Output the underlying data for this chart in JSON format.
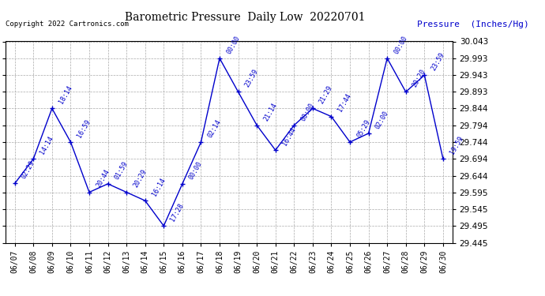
{
  "title": "Barometric Pressure  Daily Low  20220701",
  "ylabel": "Pressure  (Inches/Hg)",
  "copyright": "Copyright 2022 Cartronics.com",
  "line_color": "#0000cc",
  "marker_color": "#0000cc",
  "background_color": "#ffffff",
  "grid_color": "#aaaaaa",
  "dates": [
    "06/07",
    "06/08",
    "06/09",
    "06/10",
    "06/11",
    "06/12",
    "06/13",
    "06/14",
    "06/15",
    "06/16",
    "06/17",
    "06/18",
    "06/19",
    "06/20",
    "06/21",
    "06/22",
    "06/23",
    "06/24",
    "06/25",
    "06/26",
    "06/27",
    "06/28",
    "06/29",
    "06/30"
  ],
  "values": [
    29.621,
    29.694,
    29.844,
    29.744,
    29.595,
    29.62,
    29.595,
    29.57,
    29.495,
    29.62,
    29.744,
    29.993,
    29.893,
    29.794,
    29.72,
    29.794,
    29.844,
    29.82,
    29.744,
    29.77,
    29.993,
    29.893,
    29.943,
    29.694
  ],
  "annotations": [
    "02:29",
    "14:14",
    "18:14",
    "16:59",
    "20:44",
    "01:59",
    "20:29",
    "16:14",
    "17:28",
    "00:00",
    "02:14",
    "00:00",
    "23:59",
    "21:14",
    "16:44",
    "00:00",
    "21:29",
    "17:44",
    "05:29",
    "02:00",
    "00:00",
    "20:20",
    "23:59",
    "19:59"
  ],
  "ylim_min": 29.445,
  "ylim_max": 30.043,
  "yticks": [
    29.445,
    29.495,
    29.545,
    29.595,
    29.644,
    29.694,
    29.744,
    29.794,
    29.844,
    29.893,
    29.943,
    29.993,
    30.043
  ]
}
